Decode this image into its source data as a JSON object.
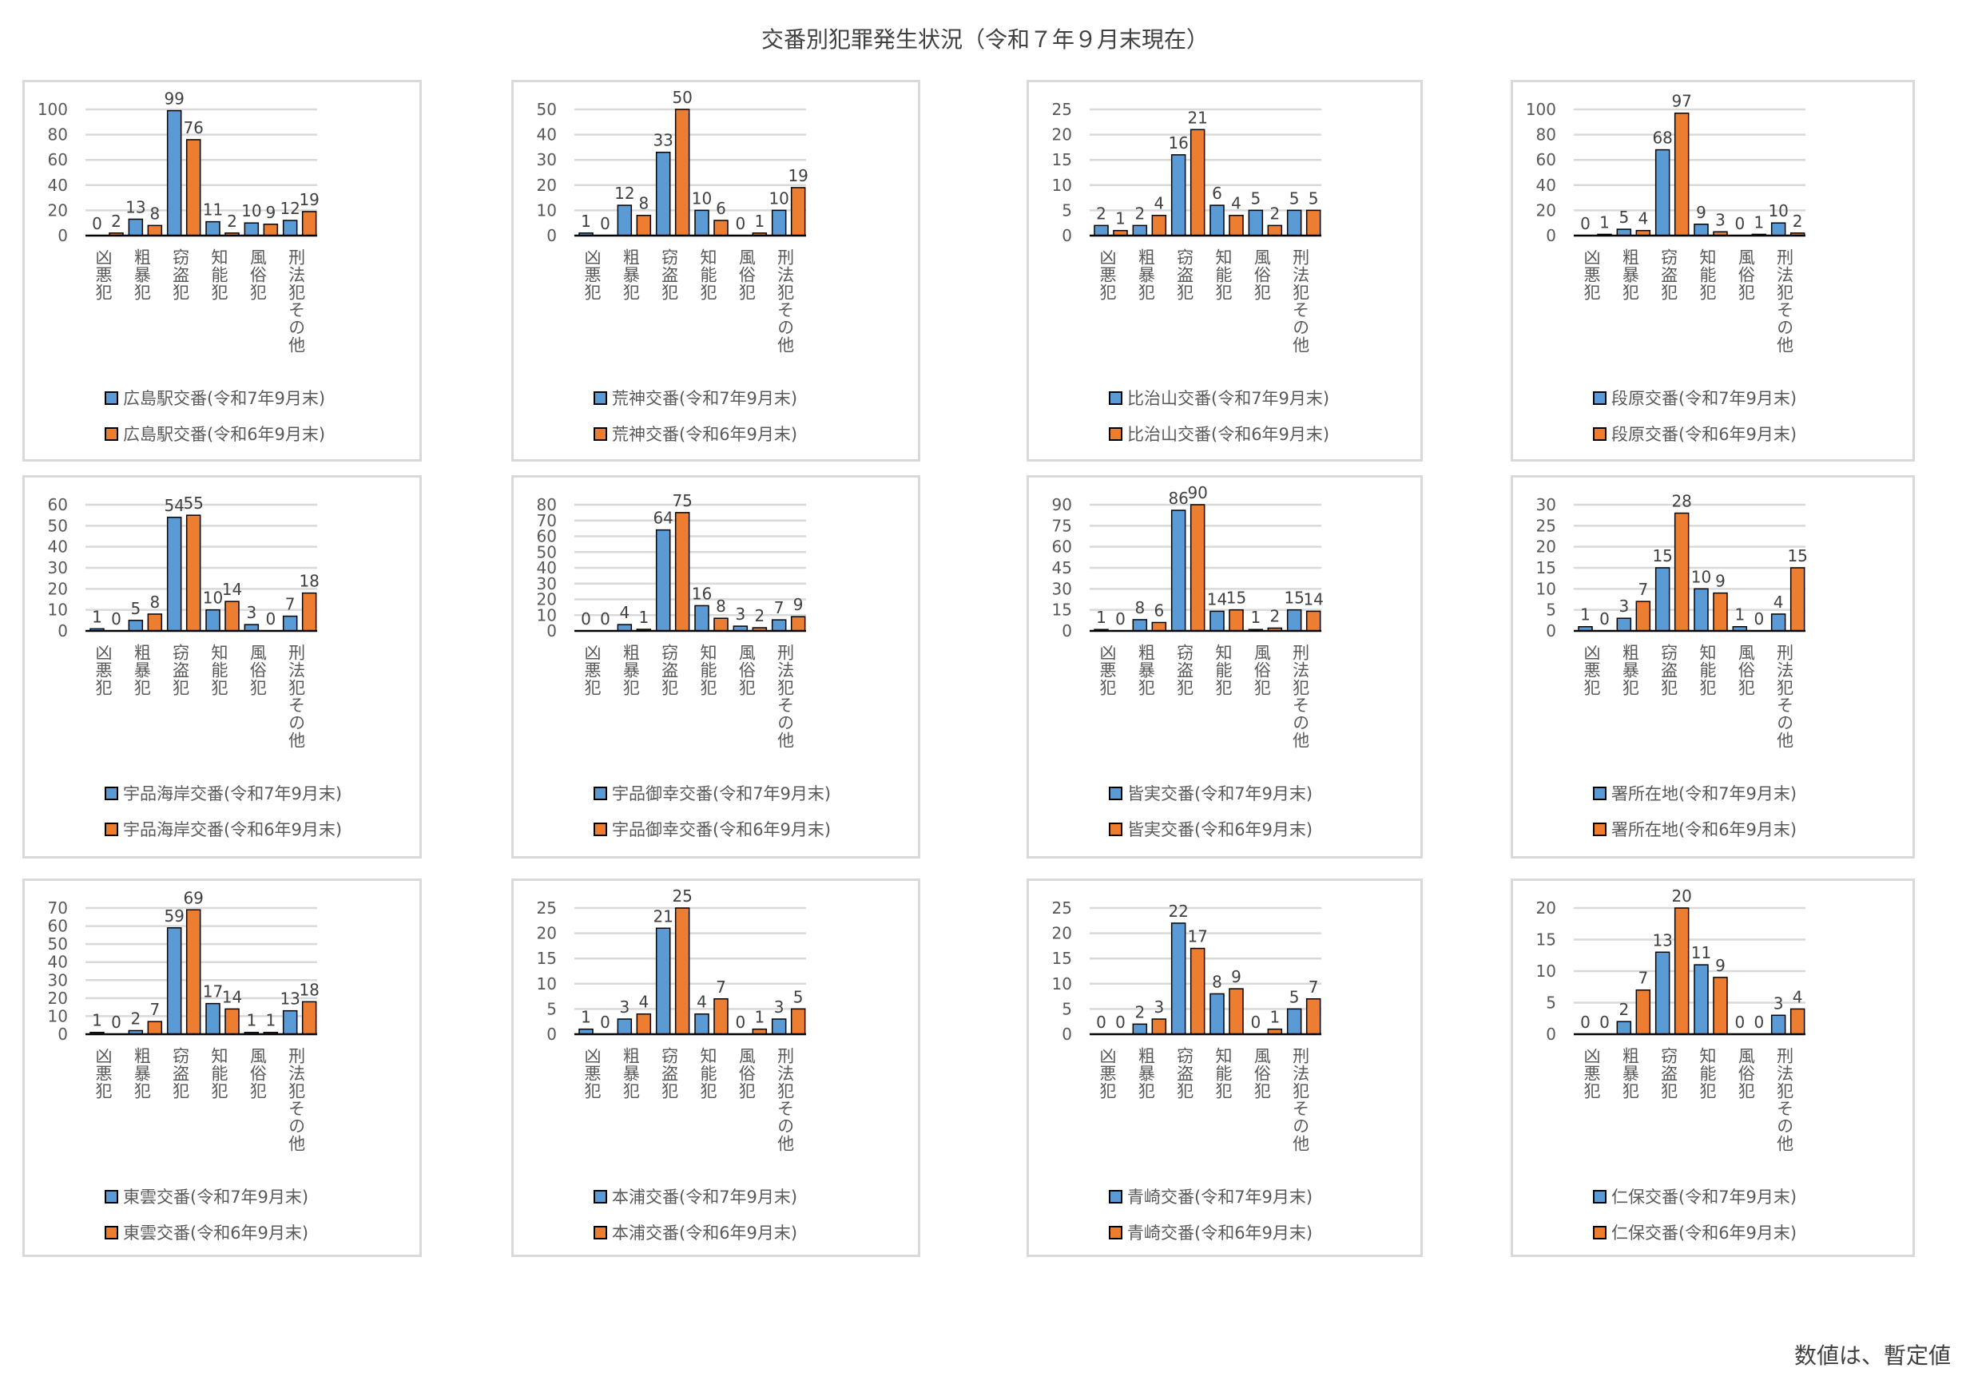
{
  "title": "交番別犯罪発生状況（令和７年９月末現在）",
  "footer": "数値は、暫定値",
  "colors": {
    "current": "#5B9BD5",
    "previous": "#ED7D31"
  },
  "chart_data": [
    {
      "type": "bar",
      "categories": [
        "凶悪犯",
        "粗暴犯",
        "窃盗犯",
        "知能犯",
        "風俗犯",
        "刑法犯その他"
      ],
      "series": [
        {
          "name": "広島駅交番(令和7年9月末)",
          "values": [
            0,
            13,
            99,
            11,
            10,
            12
          ]
        },
        {
          "name": "広島駅交番(令和6年9月末)",
          "values": [
            2,
            8,
            76,
            2,
            9,
            19
          ]
        }
      ],
      "ylim": [
        0,
        100
      ],
      "yticks": [
        0,
        20,
        40,
        60,
        80,
        100
      ],
      "legend": "bottom",
      "grid": true
    },
    {
      "type": "bar",
      "categories": [
        "凶悪犯",
        "粗暴犯",
        "窃盗犯",
        "知能犯",
        "風俗犯",
        "刑法犯その他"
      ],
      "series": [
        {
          "name": "荒神交番(令和7年9月末)",
          "values": [
            1,
            12,
            33,
            10,
            0,
            10
          ]
        },
        {
          "name": "荒神交番(令和6年9月末)",
          "values": [
            0,
            8,
            50,
            6,
            1,
            19
          ]
        }
      ],
      "ylim": [
        0,
        50
      ],
      "yticks": [
        0,
        10,
        20,
        30,
        40,
        50
      ],
      "legend": "bottom",
      "grid": true
    },
    {
      "type": "bar",
      "categories": [
        "凶悪犯",
        "粗暴犯",
        "窃盗犯",
        "知能犯",
        "風俗犯",
        "刑法犯その他"
      ],
      "series": [
        {
          "name": "比治山交番(令和7年9月末)",
          "values": [
            2,
            2,
            16,
            6,
            5,
            5
          ]
        },
        {
          "name": "比治山交番(令和6年9月末)",
          "values": [
            1,
            4,
            21,
            4,
            2,
            5
          ]
        }
      ],
      "ylim": [
        0,
        25
      ],
      "yticks": [
        0,
        5,
        10,
        15,
        20,
        25
      ],
      "legend": "bottom",
      "grid": true
    },
    {
      "type": "bar",
      "categories": [
        "凶悪犯",
        "粗暴犯",
        "窃盗犯",
        "知能犯",
        "風俗犯",
        "刑法犯その他"
      ],
      "series": [
        {
          "name": "段原交番(令和7年9月末)",
          "values": [
            0,
            5,
            68,
            9,
            0,
            10
          ]
        },
        {
          "name": "段原交番(令和6年9月末)",
          "values": [
            1,
            4,
            97,
            3,
            1,
            2
          ]
        }
      ],
      "ylim": [
        0,
        100
      ],
      "yticks": [
        0,
        20,
        40,
        60,
        80,
        100
      ],
      "legend": "bottom",
      "grid": true
    },
    {
      "type": "bar",
      "categories": [
        "凶悪犯",
        "粗暴犯",
        "窃盗犯",
        "知能犯",
        "風俗犯",
        "刑法犯その他"
      ],
      "series": [
        {
          "name": "宇品海岸交番(令和7年9月末)",
          "values": [
            1,
            5,
            54,
            10,
            3,
            7
          ]
        },
        {
          "name": "宇品海岸交番(令和6年9月末)",
          "values": [
            0,
            8,
            55,
            14,
            0,
            18
          ]
        }
      ],
      "ylim": [
        0,
        60
      ],
      "yticks": [
        0,
        10,
        20,
        30,
        40,
        50,
        60
      ],
      "legend": "bottom",
      "grid": true
    },
    {
      "type": "bar",
      "categories": [
        "凶悪犯",
        "粗暴犯",
        "窃盗犯",
        "知能犯",
        "風俗犯",
        "刑法犯その他"
      ],
      "series": [
        {
          "name": "宇品御幸交番(令和7年9月末)",
          "values": [
            0,
            4,
            64,
            16,
            3,
            7
          ]
        },
        {
          "name": "宇品御幸交番(令和6年9月末)",
          "values": [
            0,
            1,
            75,
            8,
            2,
            9
          ]
        }
      ],
      "ylim": [
        0,
        80
      ],
      "yticks": [
        0,
        10,
        20,
        30,
        40,
        50,
        60,
        70,
        80
      ],
      "legend": "bottom",
      "grid": true
    },
    {
      "type": "bar",
      "categories": [
        "凶悪犯",
        "粗暴犯",
        "窃盗犯",
        "知能犯",
        "風俗犯",
        "刑法犯その他"
      ],
      "series": [
        {
          "name": "皆実交番(令和7年9月末)",
          "values": [
            1,
            8,
            86,
            14,
            1,
            15
          ]
        },
        {
          "name": "皆実交番(令和6年9月末)",
          "values": [
            0,
            6,
            90,
            15,
            2,
            14
          ]
        }
      ],
      "ylim": [
        0,
        90
      ],
      "yticks": [
        0,
        15,
        30,
        45,
        60,
        75,
        90
      ],
      "legend": "bottom",
      "grid": true
    },
    {
      "type": "bar",
      "categories": [
        "凶悪犯",
        "粗暴犯",
        "窃盗犯",
        "知能犯",
        "風俗犯",
        "刑法犯その他"
      ],
      "series": [
        {
          "name": "署所在地(令和7年9月末)",
          "values": [
            1,
            3,
            15,
            10,
            1,
            4
          ]
        },
        {
          "name": "署所在地(令和6年9月末)",
          "values": [
            0,
            7,
            28,
            9,
            0,
            15
          ]
        }
      ],
      "ylim": [
        0,
        30
      ],
      "yticks": [
        0,
        5,
        10,
        15,
        20,
        25,
        30
      ],
      "legend": "bottom",
      "grid": true
    },
    {
      "type": "bar",
      "categories": [
        "凶悪犯",
        "粗暴犯",
        "窃盗犯",
        "知能犯",
        "風俗犯",
        "刑法犯その他"
      ],
      "series": [
        {
          "name": "東雲交番(令和7年9月末)",
          "values": [
            1,
            2,
            59,
            17,
            1,
            13
          ]
        },
        {
          "name": "東雲交番(令和6年9月末)",
          "values": [
            0,
            7,
            69,
            14,
            1,
            18
          ]
        }
      ],
      "ylim": [
        0,
        70
      ],
      "yticks": [
        0,
        10,
        20,
        30,
        40,
        50,
        60,
        70
      ],
      "legend": "bottom",
      "grid": true
    },
    {
      "type": "bar",
      "categories": [
        "凶悪犯",
        "粗暴犯",
        "窃盗犯",
        "知能犯",
        "風俗犯",
        "刑法犯その他"
      ],
      "series": [
        {
          "name": "本浦交番(令和7年9月末)",
          "values": [
            1,
            3,
            21,
            4,
            0,
            3
          ]
        },
        {
          "name": "本浦交番(令和6年9月末)",
          "values": [
            0,
            4,
            25,
            7,
            1,
            5
          ]
        }
      ],
      "ylim": [
        0,
        25
      ],
      "yticks": [
        0,
        5,
        10,
        15,
        20,
        25
      ],
      "legend": "bottom",
      "grid": true
    },
    {
      "type": "bar",
      "categories": [
        "凶悪犯",
        "粗暴犯",
        "窃盗犯",
        "知能犯",
        "風俗犯",
        "刑法犯その他"
      ],
      "series": [
        {
          "name": "青崎交番(令和7年9月末)",
          "values": [
            0,
            2,
            22,
            8,
            0,
            5
          ]
        },
        {
          "name": "青崎交番(令和6年9月末)",
          "values": [
            0,
            3,
            17,
            9,
            1,
            7
          ]
        }
      ],
      "ylim": [
        0,
        25
      ],
      "yticks": [
        0,
        5,
        10,
        15,
        20,
        25
      ],
      "legend": "bottom",
      "grid": true
    },
    {
      "type": "bar",
      "categories": [
        "凶悪犯",
        "粗暴犯",
        "窃盗犯",
        "知能犯",
        "風俗犯",
        "刑法犯その他"
      ],
      "series": [
        {
          "name": "仁保交番(令和7年9月末)",
          "values": [
            0,
            2,
            13,
            11,
            0,
            3
          ]
        },
        {
          "name": "仁保交番(令和6年9月末)",
          "values": [
            0,
            7,
            20,
            9,
            0,
            4
          ]
        }
      ],
      "ylim": [
        0,
        20
      ],
      "yticks": [
        0,
        5,
        10,
        15,
        20
      ],
      "legend": "bottom",
      "grid": true
    }
  ]
}
